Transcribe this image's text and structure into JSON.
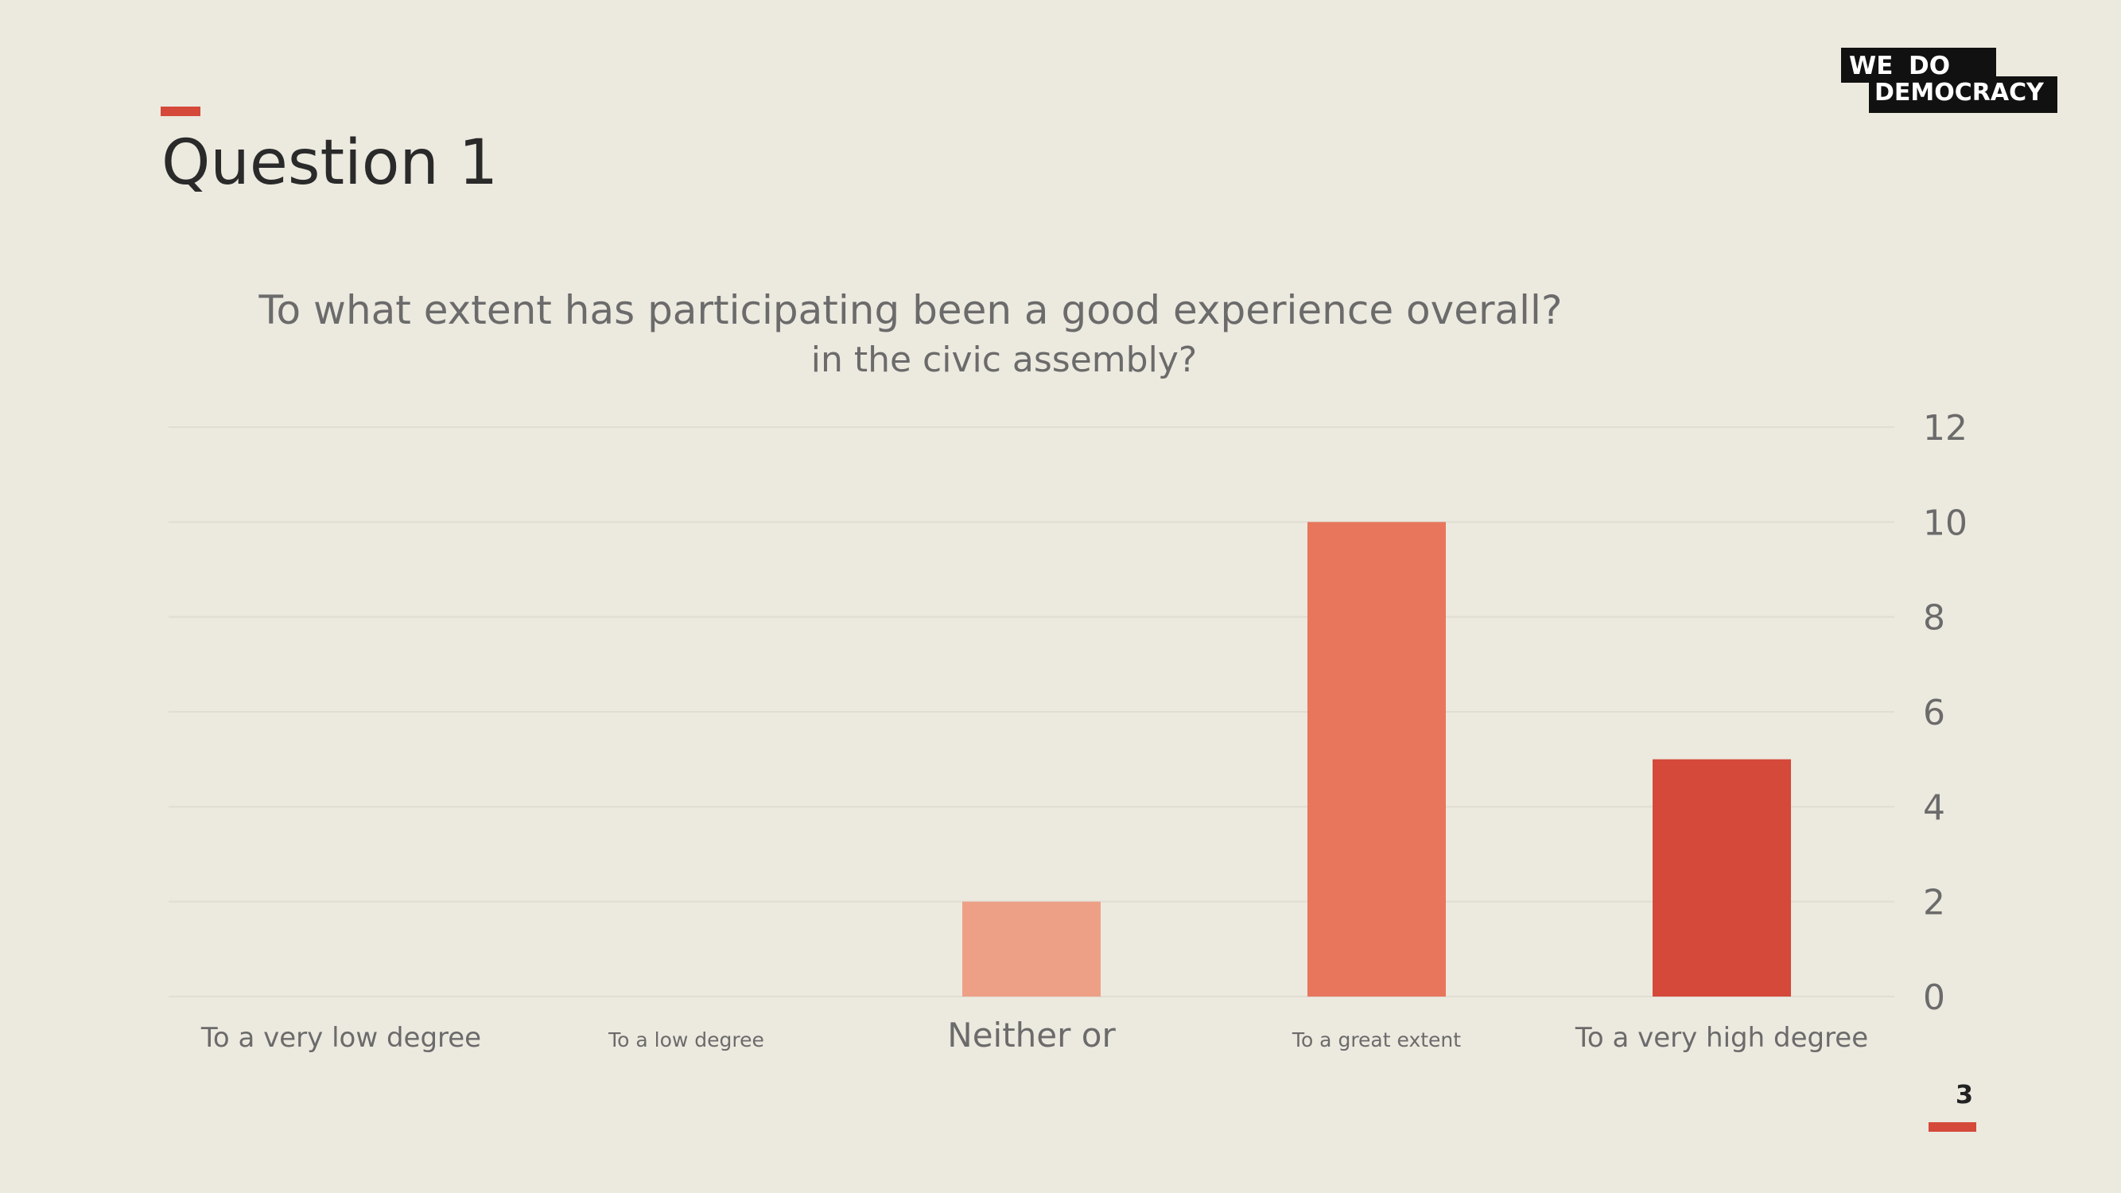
{
  "page": {
    "title": "Question 1",
    "page_number": "3"
  },
  "logo": {
    "line1_left": "WE",
    "line1_right": "DO",
    "line2": "DEMOCRACY"
  },
  "colors": {
    "background": "#ECE9DF",
    "accent": "#D4493A",
    "bar_light": "#EEA086",
    "bar_mid": "#E8765C",
    "bar_dark": "#D4493A",
    "gridline": "#E0DDD3",
    "text_gray": "#6b6b6b"
  },
  "chart_data": {
    "type": "bar",
    "title": "To what extent has participating been a good experience overall?",
    "subtitle": "in the civic assembly?",
    "categories": [
      "To a very low degree",
      "To a low degree",
      "Neither or",
      "To a great extent",
      "To a very high degree"
    ],
    "values": [
      0,
      0,
      2,
      10,
      5
    ],
    "bar_colors": [
      "#EEA086",
      "#EEA086",
      "#EEA086",
      "#E8765C",
      "#D4493A"
    ],
    "category_label_sizes": [
      "medium",
      "small",
      "large",
      "small",
      "medium"
    ],
    "y_ticks": [
      "0",
      "2",
      "4",
      "6",
      "8",
      "10",
      "12"
    ],
    "ylim": [
      0,
      12
    ],
    "y_axis_side": "right",
    "grid": true,
    "legend": "none"
  }
}
